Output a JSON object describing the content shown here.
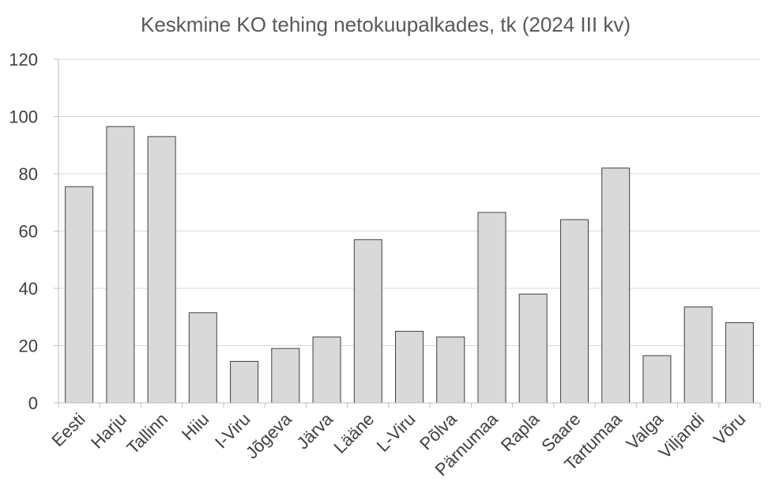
{
  "chart_data": {
    "type": "bar",
    "title": "Keskmine KO tehing netokuupalkades, tk (2024 III kv)",
    "xlabel": "",
    "ylabel": "",
    "categories": [
      "Eesti",
      "Harju",
      "Tallinn",
      "Hiiu",
      "I-Viru",
      "Jõgeva",
      "Järva",
      "Lääne",
      "L-Viru",
      "Põlva",
      "Pärnumaa",
      "Rapla",
      "Saare",
      "Tartumaa",
      "Valga",
      "Viljandi",
      "Võru"
    ],
    "values": [
      75.5,
      96.5,
      93,
      31.5,
      14.5,
      19,
      23,
      57,
      25,
      23,
      66.5,
      38,
      64,
      82,
      16.5,
      33.5,
      28
    ],
    "ylim": [
      0,
      120
    ],
    "yticks": [
      "0",
      "20",
      "40",
      "60",
      "80",
      "100",
      "120"
    ],
    "grid": true,
    "legend": "none",
    "bar_color": "#d9d9d9",
    "bar_edge_color": "#404040"
  }
}
